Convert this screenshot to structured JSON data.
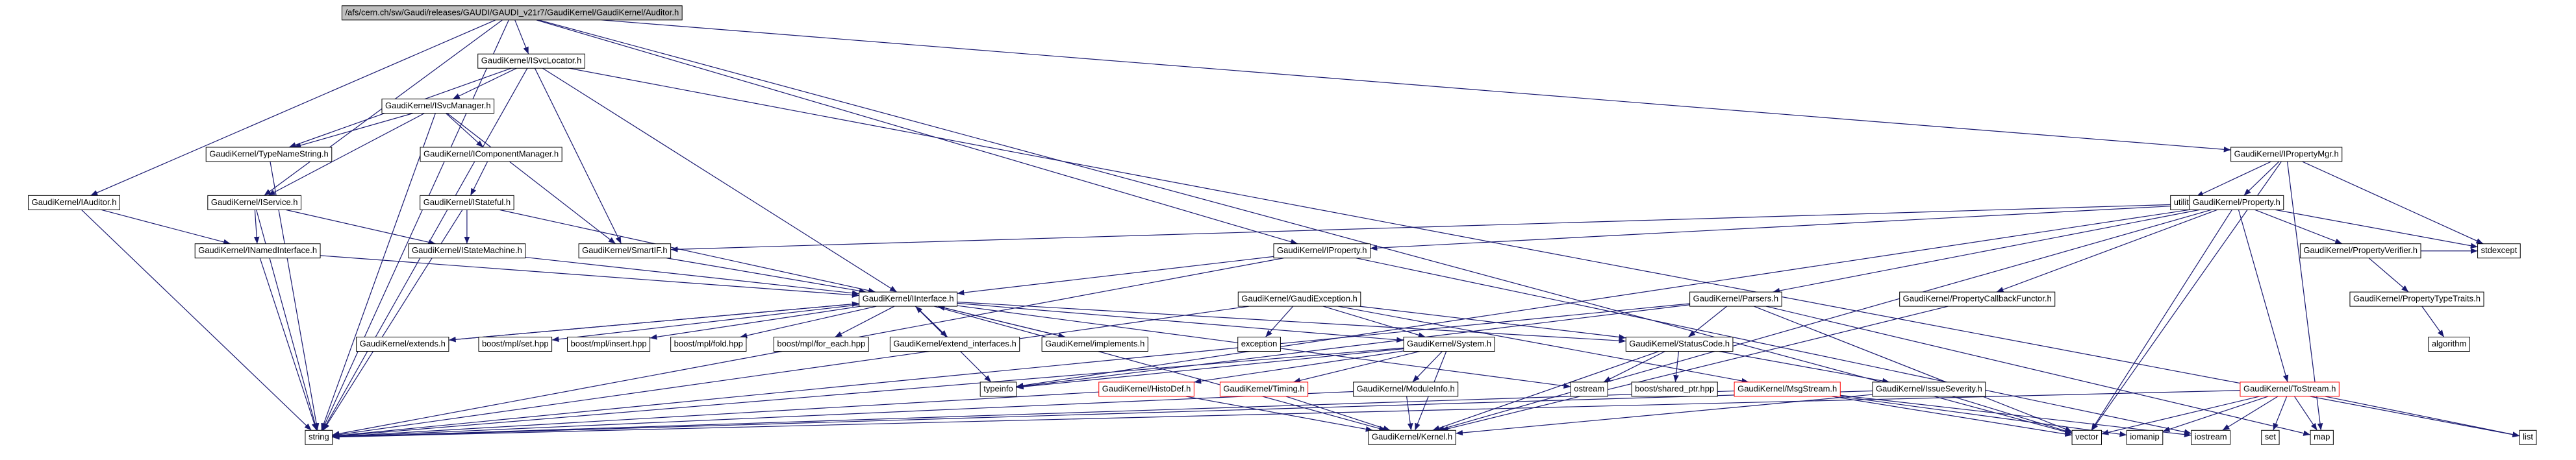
{
  "nodes": [
    {
      "label": "/afs/cern.ch/sw/Gaudi/releases/GAUDI/GAUDI_v21r7/GaudiKernel/GaudiKernel/Auditor.h"
    },
    {
      "label": "GaudiKernel/ISvcLocator.h"
    },
    {
      "label": "GaudiKernel/ISvcManager.h"
    },
    {
      "label": "GaudiKernel/TypeNameString.h"
    },
    {
      "label": "GaudiKernel/IComponentManager.h"
    },
    {
      "label": "GaudiKernel/IStateful.h"
    },
    {
      "label": "GaudiKernel/IService.h"
    },
    {
      "label": "GaudiKernel/IAuditor.h"
    },
    {
      "label": "GaudiKernel/INamedInterface.h"
    },
    {
      "label": "GaudiKernel/IStateMachine.h"
    },
    {
      "label": "GaudiKernel/SmartIF.h"
    },
    {
      "label": "GaudiKernel/IProperty.h"
    },
    {
      "label": "GaudiKernel/IPropertyMgr.h"
    },
    {
      "label": "utility"
    },
    {
      "label": "GaudiKernel/Property.h"
    },
    {
      "label": "stdexcept"
    },
    {
      "label": "GaudiKernel/PropertyVerifier.h"
    },
    {
      "label": "GaudiKernel/IInterface.h"
    },
    {
      "label": "GaudiKernel/GaudiException.h"
    },
    {
      "label": "GaudiKernel/Parsers.h"
    },
    {
      "label": "GaudiKernel/PropertyCallbackFunctor.h"
    },
    {
      "label": "GaudiKernel/PropertyTypeTraits.h"
    },
    {
      "label": "GaudiKernel/extends.h"
    },
    {
      "label": "boost/mpl/set.hpp"
    },
    {
      "label": "boost/mpl/insert.hpp"
    },
    {
      "label": "boost/mpl/fold.hpp"
    },
    {
      "label": "boost/mpl/for_each.hpp"
    },
    {
      "label": "GaudiKernel/extend_interfaces.h"
    },
    {
      "label": "GaudiKernel/implements.h"
    },
    {
      "label": "exception"
    },
    {
      "label": "GaudiKernel/System.h"
    },
    {
      "label": "GaudiKernel/StatusCode.h"
    },
    {
      "label": "algorithm"
    },
    {
      "label": "typeinfo"
    },
    {
      "label": "GaudiKernel/HistoDef.h"
    },
    {
      "label": "GaudiKernel/Timing.h"
    },
    {
      "label": "GaudiKernel/ModuleInfo.h"
    },
    {
      "label": "ostream"
    },
    {
      "label": "boost/shared_ptr.hpp"
    },
    {
      "label": "GaudiKernel/MsgStream.h"
    },
    {
      "label": "GaudiKernel/IssueSeverity.h"
    },
    {
      "label": "GaudiKernel/ToStream.h"
    },
    {
      "label": "string"
    },
    {
      "label": "GaudiKernel/Kernel.h"
    },
    {
      "label": "vector"
    },
    {
      "label": "iomanip"
    },
    {
      "label": "iostream"
    },
    {
      "label": "set"
    },
    {
      "label": "map"
    },
    {
      "label": "list"
    }
  ]
}
